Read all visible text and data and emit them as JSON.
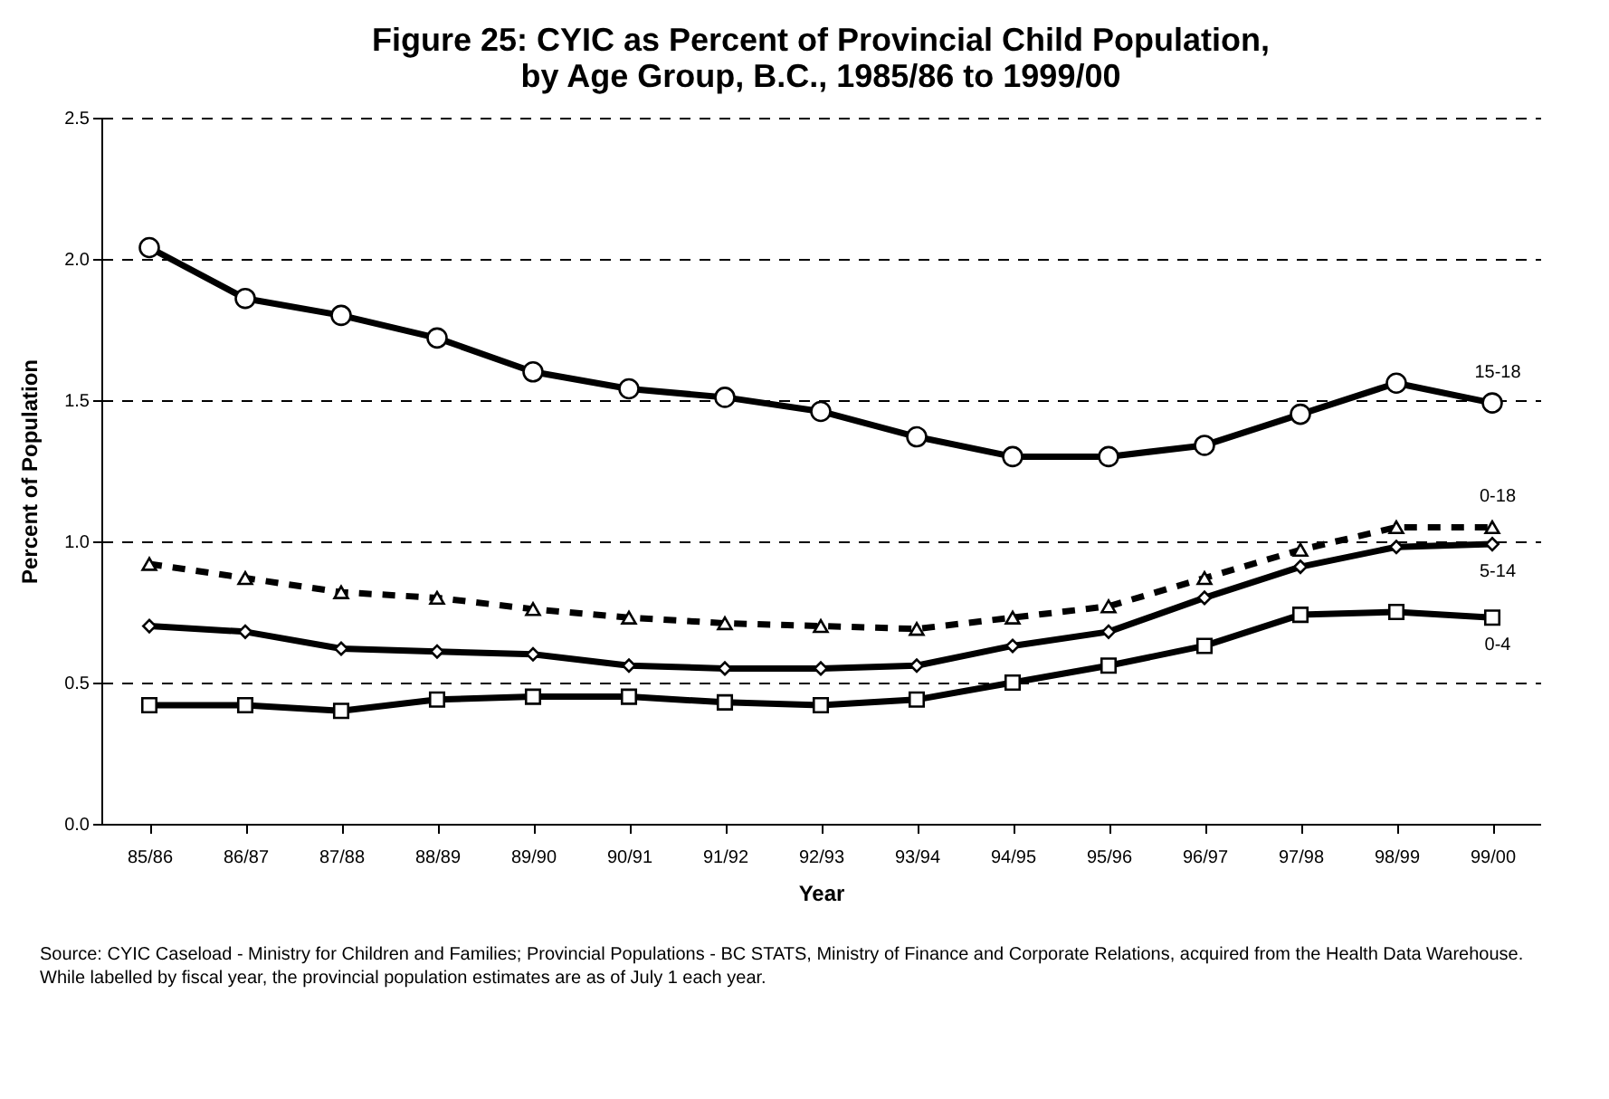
{
  "chart_data": {
    "type": "line",
    "title": "Figure 25:  CYIC as Percent of Provincial Child Population,\nby Age Group, B.C., 1985/86 to 1999/00",
    "xlabel": "Year",
    "ylabel": "Percent of Population",
    "categories": [
      "85/86",
      "86/87",
      "87/88",
      "88/89",
      "89/90",
      "90/91",
      "91/92",
      "92/93",
      "93/94",
      "94/95",
      "95/96",
      "96/97",
      "97/98",
      "98/99",
      "99/00"
    ],
    "series": [
      {
        "name": "15-18",
        "color": "#000000",
        "marker": "circle",
        "line_style": "solid",
        "values": [
          2.04,
          1.86,
          1.8,
          1.72,
          1.6,
          1.54,
          1.51,
          1.46,
          1.37,
          1.3,
          1.3,
          1.34,
          1.45,
          1.56,
          1.49
        ]
      },
      {
        "name": "0-18",
        "color": "#000000",
        "marker": "triangle",
        "line_style": "dashed",
        "values": [
          0.92,
          0.87,
          0.82,
          0.8,
          0.76,
          0.73,
          0.71,
          0.7,
          0.69,
          0.73,
          0.77,
          0.87,
          0.97,
          1.05,
          1.05
        ]
      },
      {
        "name": "5-14",
        "color": "#000000",
        "marker": "diamond",
        "line_style": "solid",
        "values": [
          0.7,
          0.68,
          0.62,
          0.61,
          0.6,
          0.56,
          0.55,
          0.55,
          0.56,
          0.63,
          0.68,
          0.8,
          0.91,
          0.98,
          0.99
        ]
      },
      {
        "name": "0-4",
        "color": "#000000",
        "marker": "square",
        "line_style": "solid",
        "values": [
          0.42,
          0.42,
          0.4,
          0.44,
          0.45,
          0.45,
          0.43,
          0.42,
          0.44,
          0.5,
          0.56,
          0.63,
          0.74,
          0.75,
          0.73
        ]
      }
    ],
    "ylim": [
      0,
      2.5
    ],
    "yticks": [
      {
        "value": 0,
        "label": "0.0"
      },
      {
        "value": 0.5,
        "label": "0.5"
      },
      {
        "value": 1,
        "label": "1.0"
      },
      {
        "value": 1.5,
        "label": "1.5"
      },
      {
        "value": 2,
        "label": "2.0"
      },
      {
        "value": 2.5,
        "label": "2.5"
      }
    ],
    "grid": "y",
    "annotations": [
      "Source:  CYIC Caseload - Ministry for Children and Families; Provincial Populations - BC STATS, Ministry of Finance and Corporate Relations, acquired from the Health Data Warehouse.  While labelled by fiscal year, the provincial population estimates are as of July 1 each year."
    ]
  }
}
